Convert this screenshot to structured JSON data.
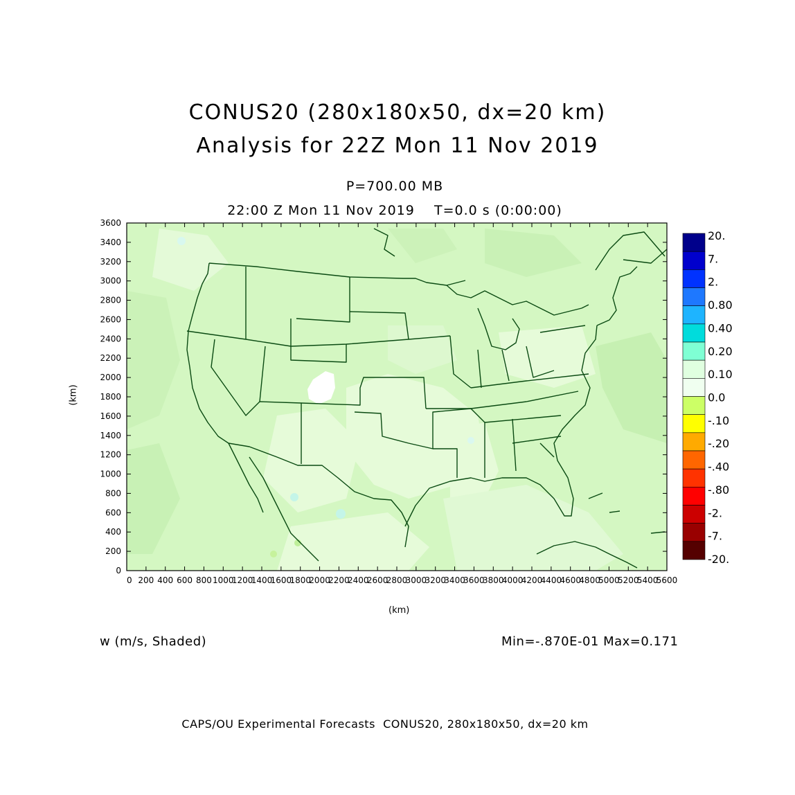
{
  "header": {
    "title_line1": "CONUS20 (280x180x50, dx=20 km)",
    "title_line2": "Analysis for 22Z Mon 11 Nov 2019",
    "level": "P=700.00 MB",
    "valid_time": "22:00 Z Mon 11 Nov 2019    T=0.0 s (0:00:00)"
  },
  "chart_data": {
    "type": "heatmap",
    "field": "w (m/s, Shaded)",
    "xlabel": "(km)",
    "ylabel": "(km)",
    "xlim": [
      0,
      5600
    ],
    "ylim": [
      0,
      3600
    ],
    "x_ticks": [
      "0",
      "200",
      "400",
      "600",
      "800",
      "1000",
      "1200",
      "1400",
      "1600",
      "1800",
      "2000",
      "2200",
      "2400",
      "2600",
      "2800",
      "3000",
      "3200",
      "3400",
      "3600",
      "3800",
      "4000",
      "4200",
      "4400",
      "4600",
      "4800",
      "5000",
      "5200",
      "5400",
      "5600"
    ],
    "y_ticks": [
      "0",
      "200",
      "400",
      "600",
      "800",
      "1000",
      "1200",
      "1400",
      "1600",
      "1800",
      "2000",
      "2200",
      "2400",
      "2600",
      "2800",
      "3000",
      "3200",
      "3400",
      "3600"
    ],
    "colorbar": {
      "labels": [
        "20.",
        "7.",
        "2.",
        "0.80",
        "0.40",
        "0.20",
        "0.10",
        "0.0",
        "-.10",
        "-.20",
        "-.40",
        "-.80",
        "-2.",
        "-7.",
        "-20."
      ],
      "colors": [
        "#00008b",
        "#0000cd",
        "#0032ff",
        "#1e78ff",
        "#1eb4ff",
        "#00dcdc",
        "#7fffd4",
        "#e0ffe0",
        "#f0fff0",
        "#ccff66",
        "#ffff00",
        "#ffaa00",
        "#ff6600",
        "#ff3300",
        "#ff0000",
        "#cc0000",
        "#990000",
        "#550000"
      ]
    },
    "min_max": "Min=-.870E-01 Max=0.171",
    "dominant_color": "#d4f7c2",
    "boundary_color": "#0a4a12"
  },
  "footer": "CAPS/OU Experimental Forecasts  CONUS20, 280x180x50, dx=20 km"
}
